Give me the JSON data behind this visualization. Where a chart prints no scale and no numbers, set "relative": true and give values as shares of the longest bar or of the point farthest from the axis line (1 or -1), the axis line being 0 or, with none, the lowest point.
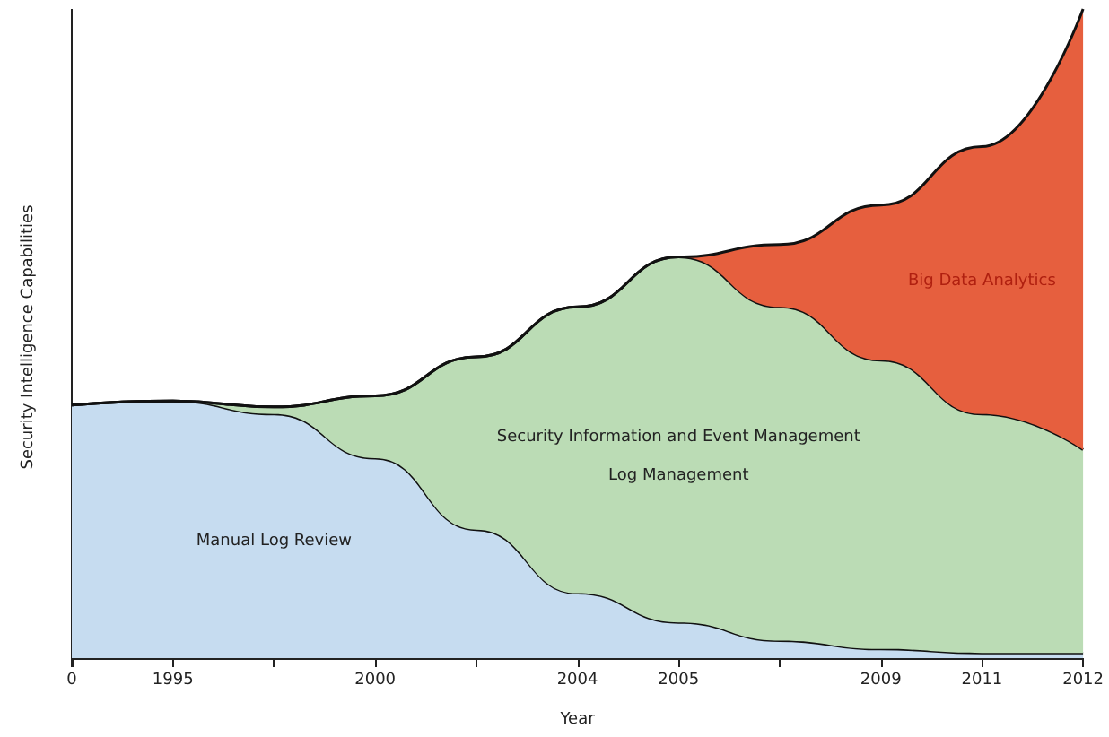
{
  "chart_data": {
    "type": "area",
    "stacked": true,
    "relative": true,
    "xlabel": "Year",
    "ylabel": "Security Intelligence Capabilities",
    "categories": [
      "0",
      "1995",
      null,
      "2000",
      null,
      "2004",
      "2005",
      null,
      "2009",
      "2011",
      "2012"
    ],
    "series": [
      {
        "name": "Manual Log Review",
        "color": "#c6dcf0",
        "values": [
          0.39,
          0.396,
          0.376,
          0.308,
          0.198,
          0.1,
          0.055,
          0.027,
          0.014,
          0.008,
          0.008
        ]
      },
      {
        "name": "Security Information and Event Management",
        "color": "#bbdcb5",
        "values": [
          0,
          0,
          0.011,
          0.096,
          0.266,
          0.441,
          0.563,
          0.514,
          0.445,
          0.368,
          0.313
        ]
      },
      {
        "name": "Big Data Analytics",
        "color": "#e65f3e",
        "values": [
          0,
          0,
          0,
          0,
          0,
          0,
          0,
          0.096,
          0.239,
          0.412,
          0.679
        ]
      }
    ],
    "annotations": [
      "Log Management"
    ],
    "legend": false,
    "grid": false,
    "marker": "none"
  }
}
